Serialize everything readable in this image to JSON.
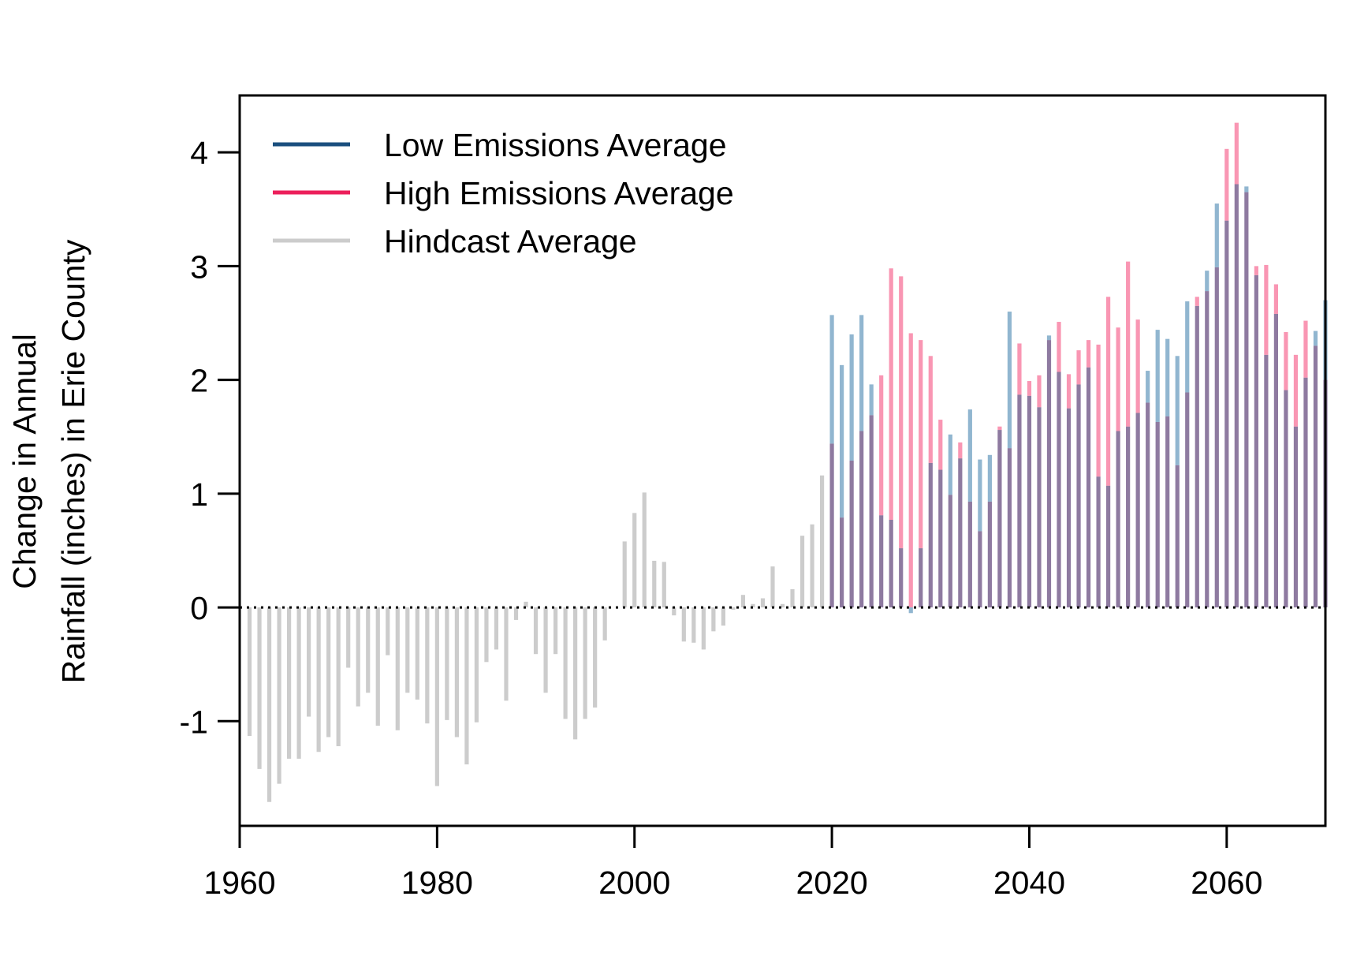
{
  "colors": {
    "low": "#1a4f7e",
    "high": "#ec1f5b",
    "hindcast": "#cccccc",
    "low_bar": "#6c9dc0",
    "high_bar": "#f7739a",
    "overlap_bar": "#8e7aa0"
  },
  "chart_data": {
    "type": "bar",
    "title": "",
    "xlabel": "",
    "ylabel_lines": [
      "Change in Annual",
      "Rainfall (inches) in Erie County"
    ],
    "xlim": [
      1960,
      2070
    ],
    "ylim": [
      -1.92,
      4.5
    ],
    "x_ticks": [
      "1960",
      "1980",
      "2000",
      "2020",
      "2040",
      "2060"
    ],
    "y_ticks": [
      "-1",
      "0",
      "1",
      "2",
      "3",
      "4"
    ],
    "legend_position": "top-left",
    "legend": [
      {
        "key": "low",
        "label": "Low Emissions Average"
      },
      {
        "key": "high",
        "label": "High Emissions Average"
      },
      {
        "key": "hindcast",
        "label": "Hindcast Average"
      }
    ],
    "zero_line": "dotted",
    "series": [
      {
        "key": "hindcast",
        "name": "Hindcast Average",
        "x": [
          1961,
          1962,
          1963,
          1964,
          1965,
          1966,
          1967,
          1968,
          1969,
          1970,
          1971,
          1972,
          1973,
          1974,
          1975,
          1976,
          1977,
          1978,
          1979,
          1980,
          1981,
          1982,
          1983,
          1984,
          1985,
          1986,
          1987,
          1988,
          1989,
          1990,
          1991,
          1992,
          1993,
          1994,
          1995,
          1996,
          1997,
          1998,
          1999,
          2000,
          2001,
          2002,
          2003,
          2004,
          2005,
          2006,
          2007,
          2008,
          2009,
          2010,
          2011,
          2012,
          2013,
          2014,
          2015,
          2016,
          2017,
          2018,
          2019
        ],
        "values": [
          -1.13,
          -1.42,
          -1.71,
          -1.55,
          -1.33,
          -1.33,
          -0.96,
          -1.27,
          -1.14,
          -1.22,
          -0.53,
          -0.87,
          -0.75,
          -1.04,
          -0.42,
          -1.08,
          -0.75,
          -0.81,
          -1.02,
          -1.57,
          -0.99,
          -1.14,
          -1.38,
          -1.01,
          -0.48,
          -0.37,
          -0.82,
          -0.11,
          0.05,
          -0.41,
          -0.75,
          -0.41,
          -0.98,
          -1.16,
          -0.98,
          -0.88,
          -0.29,
          0.0,
          0.58,
          0.83,
          1.01,
          0.41,
          0.4,
          -0.07,
          -0.3,
          -0.31,
          -0.37,
          -0.21,
          -0.16,
          -0.02,
          0.11,
          0.03,
          0.08,
          0.36,
          0.03,
          0.16,
          0.63,
          0.73,
          1.16
        ]
      },
      {
        "key": "low",
        "name": "Low Emissions Average",
        "x": [
          2020,
          2021,
          2022,
          2023,
          2024,
          2025,
          2026,
          2027,
          2028,
          2029,
          2030,
          2031,
          2032,
          2033,
          2034,
          2035,
          2036,
          2037,
          2038,
          2039,
          2040,
          2041,
          2042,
          2043,
          2044,
          2045,
          2046,
          2047,
          2048,
          2049,
          2050,
          2051,
          2052,
          2053,
          2054,
          2055,
          2056,
          2057,
          2058,
          2059,
          2060,
          2061,
          2062,
          2063,
          2064,
          2065,
          2066,
          2067,
          2068,
          2069,
          2070
        ],
        "values": [
          2.57,
          2.13,
          2.4,
          2.57,
          1.96,
          0.81,
          0.77,
          0.52,
          -0.05,
          0.52,
          1.27,
          1.21,
          1.52,
          1.31,
          1.74,
          1.3,
          1.34,
          1.56,
          2.6,
          1.87,
          1.86,
          1.76,
          2.39,
          2.07,
          1.75,
          1.96,
          2.11,
          1.15,
          1.07,
          1.55,
          1.59,
          1.71,
          2.08,
          2.44,
          2.36,
          2.21,
          2.69,
          2.65,
          2.96,
          3.55,
          3.4,
          3.72,
          3.7,
          2.92,
          2.22,
          2.58,
          1.91,
          1.59,
          2.02,
          2.43,
          2.7
        ]
      },
      {
        "key": "high",
        "name": "High Emissions Average",
        "x": [
          2020,
          2021,
          2022,
          2023,
          2024,
          2025,
          2026,
          2027,
          2028,
          2029,
          2030,
          2031,
          2032,
          2033,
          2034,
          2035,
          2036,
          2037,
          2038,
          2039,
          2040,
          2041,
          2042,
          2043,
          2044,
          2045,
          2046,
          2047,
          2048,
          2049,
          2050,
          2051,
          2052,
          2053,
          2054,
          2055,
          2056,
          2057,
          2058,
          2059,
          2060,
          2061,
          2062,
          2063,
          2064,
          2065,
          2066,
          2067,
          2068,
          2069,
          2070
        ],
        "values": [
          1.44,
          0.79,
          1.29,
          1.55,
          1.69,
          2.04,
          2.98,
          2.91,
          2.41,
          2.35,
          2.21,
          1.65,
          0.99,
          1.45,
          0.93,
          0.67,
          0.93,
          1.59,
          1.4,
          2.32,
          1.99,
          2.04,
          2.35,
          2.51,
          2.05,
          2.26,
          2.35,
          2.31,
          2.73,
          2.46,
          3.04,
          2.53,
          1.8,
          1.63,
          1.68,
          1.25,
          1.89,
          2.73,
          2.78,
          2.99,
          4.03,
          4.26,
          3.65,
          3.0,
          3.01,
          2.84,
          2.42,
          2.22,
          2.52,
          2.3,
          2.0
        ]
      }
    ]
  }
}
